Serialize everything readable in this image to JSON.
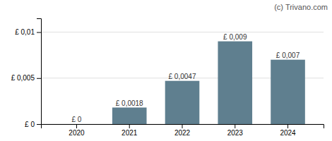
{
  "chart_data": {
    "type": "bar",
    "categories": [
      "2020",
      "2021",
      "2022",
      "2023",
      "2024"
    ],
    "values": [
      0.0,
      0.0018,
      0.0047,
      0.009,
      0.007
    ],
    "value_labels": [
      "£ 0",
      "£ 0,0018",
      "£ 0,0047",
      "£ 0,009",
      "£ 0,007"
    ],
    "data_labels": true,
    "color": "#5f7f8f",
    "ylim": [
      0,
      0.0115
    ],
    "yticks": [
      {
        "value": 0,
        "label": "£ 0"
      },
      {
        "value": 0.005,
        "label": "£ 0,005"
      },
      {
        "value": 0.01,
        "label": "£ 0,01"
      }
    ],
    "grid": true,
    "annotations": [
      "(c) Trivano.com"
    ]
  }
}
